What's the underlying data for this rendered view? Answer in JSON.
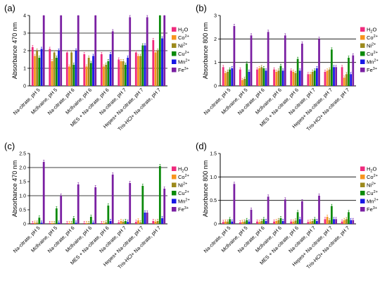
{
  "chart_data": [
    {
      "type": "bar",
      "panel_label": "(a)",
      "ylabel": "Absorbance 470 nm",
      "ylim": [
        0,
        4
      ],
      "yticks": [
        "0",
        "1",
        "2",
        "3",
        "4"
      ],
      "gridlines": [
        1,
        2,
        3
      ],
      "categories": [
        "Na-citrate, pH 5",
        "Mcllvaine, pH 5",
        "Na-citrate, pH 6",
        "Mcllvaine, pH 6",
        "MES + Na-citrate, pH 6",
        "Na-citrate, pH 7",
        "Hepes+ Na-citrate, pH 7",
        "Tris-HCl+ Na-citrate, pH 7"
      ],
      "series": [
        {
          "name": "H2O",
          "label_base": "H",
          "label_sub": "2",
          "label_tail": "O",
          "color": "#ef2a7d",
          "values": [
            2.2,
            2.1,
            1.9,
            1.8,
            1.8,
            1.5,
            1.9,
            2.6
          ]
        },
        {
          "name": "Co2+",
          "label_base": "Co",
          "label_sup": "2+",
          "color": "#f7941d",
          "values": [
            1.7,
            1.4,
            1.1,
            1.1,
            1.1,
            1.4,
            1.7,
            1.9
          ]
        },
        {
          "name": "Ni2+",
          "label_base": "Ni",
          "label_sup": "2+",
          "color": "#9c8a1c",
          "values": [
            2.0,
            1.9,
            1.9,
            1.6,
            1.2,
            1.4,
            1.7,
            2.0
          ]
        },
        {
          "name": "Cu2+",
          "label_base": "Cu",
          "label_sup": "2+",
          "color": "#0a8a0a",
          "values": [
            1.6,
            1.6,
            1.2,
            1.3,
            1.4,
            1.2,
            2.3,
            4.0
          ]
        },
        {
          "name": "Mn2+",
          "label_base": "Mn",
          "label_sup": "2+",
          "color": "#1717e6",
          "values": [
            2.1,
            2.0,
            2.0,
            1.7,
            1.8,
            1.6,
            2.3,
            2.7
          ]
        },
        {
          "name": "Fe3+",
          "label_base": "Fe",
          "label_sup": "3+",
          "color": "#7a1fa2",
          "values": [
            4.0,
            4.0,
            4.0,
            4.0,
            3.1,
            3.9,
            3.9,
            4.0
          ]
        }
      ]
    },
    {
      "type": "bar",
      "panel_label": "(b)",
      "ylabel": "Absorbance 800 nm",
      "ylim": [
        0,
        3
      ],
      "yticks": [
        "0",
        "1",
        "2",
        "3"
      ],
      "gridlines": [
        1,
        2
      ],
      "categories": [
        "Na-citrate, pH 5",
        "Mcllvaine, pH 5",
        "Na-citrate, pH 6",
        "Mcllvaine, pH 6",
        "MES + Na-citrate, pH 6",
        "Na-citrate, pH 7",
        "Hepes+ Na-citrate, pH 7",
        "Tris-HCl+ Na-citrate, pH 7"
      ],
      "series": [
        {
          "name": "H2O",
          "color": "#ef2a7d",
          "values": [
            0.8,
            0.7,
            0.7,
            0.7,
            0.65,
            0.5,
            0.6,
            0.8
          ]
        },
        {
          "name": "Co2+",
          "color": "#f7941d",
          "values": [
            0.55,
            0.25,
            0.75,
            0.6,
            0.6,
            0.5,
            0.65,
            0.35
          ]
        },
        {
          "name": "Ni2+",
          "color": "#9c8a1c",
          "values": [
            0.6,
            0.3,
            0.8,
            0.65,
            0.55,
            0.6,
            0.7,
            0.5
          ]
        },
        {
          "name": "Cu2+",
          "color": "#0a8a0a",
          "values": [
            0.7,
            0.95,
            0.75,
            0.85,
            1.15,
            0.65,
            1.55,
            1.2
          ]
        },
        {
          "name": "Mn2+",
          "color": "#1717e6",
          "values": [
            0.75,
            0.6,
            0.65,
            0.65,
            0.65,
            0.75,
            0.8,
            0.5
          ]
        },
        {
          "name": "Fe3+",
          "color": "#7a1fa2",
          "values": [
            2.55,
            2.15,
            2.3,
            2.15,
            1.8,
            2.0,
            0.8,
            1.3
          ]
        }
      ]
    },
    {
      "type": "bar",
      "panel_label": "(c)",
      "ylabel": "Absorbance 470 nm",
      "ylim": [
        0,
        2.5
      ],
      "yticks": [
        "0",
        "0.5",
        "1.0",
        "1.5",
        "2.0",
        "2.5"
      ],
      "gridlines": [
        1.0,
        2.0
      ],
      "categories": [
        "Na-citrate, pH 5",
        "Mcllvaine, pH 5",
        "Na-citrate, pH 6",
        "Mcllvaine, pH 6",
        "MES + Na-citrate, pH 6",
        "Na-citrate, pH 7",
        "Hepes+ Na-citrate, pH 7",
        "Tris-HCl+ Na-citrate, pH 7"
      ],
      "series": [
        {
          "name": "H2O",
          "color": "#ef2a7d",
          "values": [
            0.03,
            0.03,
            0.03,
            0.03,
            0.03,
            0.05,
            0.07,
            0.1
          ]
        },
        {
          "name": "Co2+",
          "color": "#f7941d",
          "values": [
            0.04,
            0.03,
            0.03,
            0.03,
            0.03,
            0.1,
            0.12,
            0.08
          ]
        },
        {
          "name": "Ni2+",
          "color": "#9c8a1c",
          "values": [
            0.04,
            0.03,
            0.03,
            0.03,
            0.05,
            0.08,
            0.05,
            0.1
          ]
        },
        {
          "name": "Cu2+",
          "color": "#0a8a0a",
          "values": [
            0.22,
            0.55,
            0.2,
            0.25,
            0.65,
            0.1,
            1.35,
            2.05
          ]
        },
        {
          "name": "Mn2+",
          "color": "#1717e6",
          "values": [
            0.04,
            0.04,
            0.04,
            0.04,
            0.1,
            0.07,
            0.4,
            0.2
          ]
        },
        {
          "name": "Fe3+",
          "color": "#7a1fa2",
          "values": [
            2.2,
            1.0,
            1.4,
            1.3,
            1.75,
            1.45,
            0.4,
            1.25
          ]
        }
      ]
    },
    {
      "type": "bar",
      "panel_label": "(d)",
      "ylabel": "Absorbance 800 nm",
      "ylim": [
        0,
        1.5
      ],
      "yticks": [
        "0",
        "0.5",
        "1.0",
        "1.5"
      ],
      "gridlines": [
        0.5,
        1.0
      ],
      "categories": [
        "Na-citrate, pH 5",
        "Mcllvaine, pH 5",
        "Na-citrate, pH 6",
        "Mcllvaine, pH 6",
        "MES + Na-citrate, pH 6",
        "Na-citrate, pH 7",
        "Hepes+ Na-citrate, pH 7",
        "Tris-HCl+ Na-citrate, pH 7"
      ],
      "series": [
        {
          "name": "H2O",
          "color": "#ef2a7d",
          "values": [
            0.04,
            0.03,
            0.05,
            0.05,
            0.05,
            0.04,
            0.1,
            0.05
          ]
        },
        {
          "name": "Co2+",
          "color": "#f7941d",
          "values": [
            0.05,
            0.04,
            0.04,
            0.06,
            0.05,
            0.05,
            0.15,
            0.08
          ]
        },
        {
          "name": "Ni2+",
          "color": "#9c8a1c",
          "values": [
            0.05,
            0.05,
            0.06,
            0.08,
            0.07,
            0.06,
            0.08,
            0.1
          ]
        },
        {
          "name": "Cu2+",
          "color": "#0a8a0a",
          "values": [
            0.1,
            0.08,
            0.1,
            0.12,
            0.25,
            0.1,
            0.38,
            0.25
          ]
        },
        {
          "name": "Mn2+",
          "color": "#1717e6",
          "values": [
            0.05,
            0.05,
            0.06,
            0.06,
            0.1,
            0.06,
            0.1,
            0.08
          ]
        },
        {
          "name": "Fe3+",
          "color": "#7a1fa2",
          "values": [
            0.85,
            0.3,
            0.58,
            0.52,
            0.48,
            0.6,
            0.1,
            0.08
          ]
        }
      ]
    }
  ]
}
